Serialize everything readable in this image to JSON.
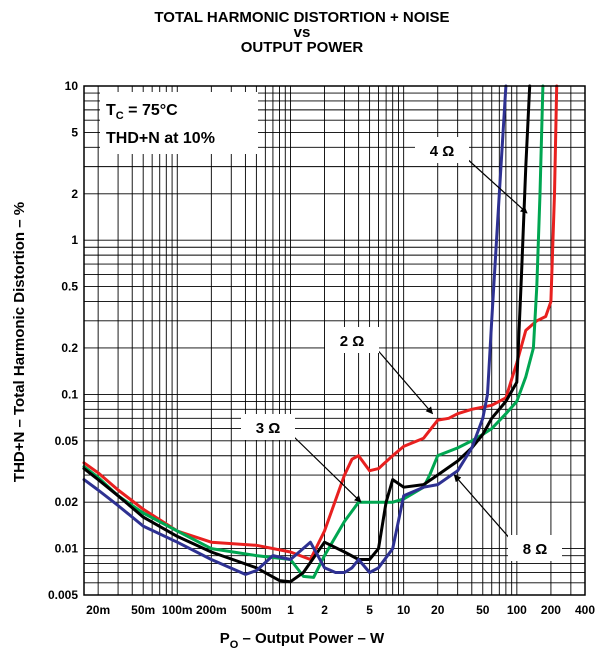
{
  "chart_data": {
    "type": "line",
    "title": [
      "TOTAL HARMONIC DISTORTION + NOISE",
      "vs",
      "OUTPUT POWER"
    ],
    "xlabel": {
      "main": "P",
      "sub": "O",
      "rest": " – Output Power – W"
    },
    "ylabel": "THD+N – Total Harmonic Distortion – %",
    "x_scale": "log",
    "y_scale": "log",
    "xlim": [
      0.015,
      400
    ],
    "ylim": [
      0.005,
      10
    ],
    "grid": true,
    "x_ticks": [
      {
        "v": 0.02,
        "label": "20m"
      },
      {
        "v": 0.05,
        "label": "50m"
      },
      {
        "v": 0.1,
        "label": "100m"
      },
      {
        "v": 0.2,
        "label": "200m"
      },
      {
        "v": 0.5,
        "label": "500m"
      },
      {
        "v": 1,
        "label": "1"
      },
      {
        "v": 2,
        "label": "2"
      },
      {
        "v": 5,
        "label": "5"
      },
      {
        "v": 10,
        "label": "10"
      },
      {
        "v": 20,
        "label": "20"
      },
      {
        "v": 50,
        "label": "50"
      },
      {
        "v": 100,
        "label": "100"
      },
      {
        "v": 200,
        "label": "200"
      },
      {
        "v": 400,
        "label": "400"
      }
    ],
    "y_ticks": [
      {
        "v": 0.005,
        "label": "0.005"
      },
      {
        "v": 0.01,
        "label": "0.01"
      },
      {
        "v": 0.02,
        "label": "0.02"
      },
      {
        "v": 0.05,
        "label": "0.05"
      },
      {
        "v": 0.1,
        "label": "0.1"
      },
      {
        "v": 0.2,
        "label": "0.2"
      },
      {
        "v": 0.5,
        "label": "0.5"
      },
      {
        "v": 1,
        "label": "1"
      },
      {
        "v": 2,
        "label": "2"
      },
      {
        "v": 5,
        "label": "5"
      },
      {
        "v": 10,
        "label": "10"
      }
    ],
    "conditions": {
      "tc_main": "T",
      "tc_sub": "C",
      "tc_rest": " = 75°C",
      "thd": "THD+N at 10%"
    },
    "series": [
      {
        "name": "2 Ω",
        "color": "#e8201f",
        "points": [
          [
            0.015,
            0.036
          ],
          [
            0.02,
            0.031
          ],
          [
            0.03,
            0.024
          ],
          [
            0.05,
            0.018
          ],
          [
            0.1,
            0.013
          ],
          [
            0.2,
            0.011
          ],
          [
            0.5,
            0.0105
          ],
          [
            1,
            0.0095
          ],
          [
            1.5,
            0.0085
          ],
          [
            2,
            0.013
          ],
          [
            3,
            0.03
          ],
          [
            3.5,
            0.038
          ],
          [
            4,
            0.04
          ],
          [
            5,
            0.032
          ],
          [
            6,
            0.033
          ],
          [
            8,
            0.04
          ],
          [
            10,
            0.046
          ],
          [
            15,
            0.052
          ],
          [
            20,
            0.068
          ],
          [
            25,
            0.07
          ],
          [
            30,
            0.075
          ],
          [
            40,
            0.08
          ],
          [
            60,
            0.085
          ],
          [
            80,
            0.095
          ],
          [
            100,
            0.16
          ],
          [
            120,
            0.26
          ],
          [
            150,
            0.3
          ],
          [
            180,
            0.32
          ],
          [
            200,
            0.4
          ],
          [
            215,
            2
          ],
          [
            225,
            10
          ]
        ]
      },
      {
        "name": "3 Ω",
        "color": "#00a651",
        "points": [
          [
            0.015,
            0.034
          ],
          [
            0.02,
            0.029
          ],
          [
            0.03,
            0.022
          ],
          [
            0.05,
            0.017
          ],
          [
            0.1,
            0.013
          ],
          [
            0.2,
            0.01
          ],
          [
            0.5,
            0.009
          ],
          [
            1,
            0.0085
          ],
          [
            1.3,
            0.0066
          ],
          [
            1.6,
            0.0065
          ],
          [
            2,
            0.009
          ],
          [
            3,
            0.015
          ],
          [
            4,
            0.02
          ],
          [
            6,
            0.02
          ],
          [
            8,
            0.02
          ],
          [
            10,
            0.021
          ],
          [
            15,
            0.025
          ],
          [
            17,
            0.03
          ],
          [
            20,
            0.04
          ],
          [
            30,
            0.045
          ],
          [
            40,
            0.05
          ],
          [
            50,
            0.055
          ],
          [
            60,
            0.06
          ],
          [
            80,
            0.075
          ],
          [
            100,
            0.09
          ],
          [
            120,
            0.13
          ],
          [
            140,
            0.2
          ],
          [
            150,
            0.5
          ],
          [
            160,
            2
          ],
          [
            170,
            10
          ]
        ]
      },
      {
        "name": "4 Ω",
        "color": "#000000",
        "points": [
          [
            0.015,
            0.033
          ],
          [
            0.02,
            0.028
          ],
          [
            0.03,
            0.022
          ],
          [
            0.05,
            0.016
          ],
          [
            0.1,
            0.012
          ],
          [
            0.2,
            0.0095
          ],
          [
            0.5,
            0.0075
          ],
          [
            0.8,
            0.0062
          ],
          [
            1,
            0.0061
          ],
          [
            1.3,
            0.007
          ],
          [
            2,
            0.011
          ],
          [
            3,
            0.0095
          ],
          [
            4,
            0.0085
          ],
          [
            5,
            0.0085
          ],
          [
            6,
            0.01
          ],
          [
            7,
            0.02
          ],
          [
            8,
            0.028
          ],
          [
            10,
            0.025
          ],
          [
            15,
            0.026
          ],
          [
            20,
            0.03
          ],
          [
            30,
            0.037
          ],
          [
            40,
            0.045
          ],
          [
            50,
            0.055
          ],
          [
            60,
            0.07
          ],
          [
            80,
            0.09
          ],
          [
            100,
            0.12
          ],
          [
            110,
            0.6
          ],
          [
            120,
            3
          ],
          [
            130,
            10
          ]
        ]
      },
      {
        "name": "8 Ω",
        "color": "#2e3192",
        "points": [
          [
            0.015,
            0.028
          ],
          [
            0.02,
            0.024
          ],
          [
            0.03,
            0.019
          ],
          [
            0.05,
            0.014
          ],
          [
            0.1,
            0.011
          ],
          [
            0.2,
            0.0085
          ],
          [
            0.4,
            0.0068
          ],
          [
            0.5,
            0.0072
          ],
          [
            0.7,
            0.009
          ],
          [
            1,
            0.0085
          ],
          [
            1.5,
            0.011
          ],
          [
            2,
            0.0075
          ],
          [
            2.5,
            0.007
          ],
          [
            3,
            0.007
          ],
          [
            3.5,
            0.0075
          ],
          [
            4,
            0.0085
          ],
          [
            5,
            0.007
          ],
          [
            6,
            0.0075
          ],
          [
            8,
            0.01
          ],
          [
            10,
            0.022
          ],
          [
            15,
            0.025
          ],
          [
            20,
            0.026
          ],
          [
            30,
            0.032
          ],
          [
            40,
            0.045
          ],
          [
            50,
            0.07
          ],
          [
            55,
            0.1
          ],
          [
            60,
            0.3
          ],
          [
            70,
            2
          ],
          [
            80,
            10
          ]
        ]
      }
    ],
    "annotations": [
      {
        "text": "4 Ω",
        "series": "4 Ω",
        "at": [
          123,
          1.5
        ]
      },
      {
        "text": "2 Ω",
        "series": "2 Ω",
        "at": [
          18,
          0.075
        ]
      },
      {
        "text": "3 Ω",
        "series": "3 Ω",
        "at": [
          4.2,
          0.02
        ]
      },
      {
        "text": "8 Ω",
        "series": "8 Ω",
        "at": [
          28,
          0.03
        ]
      }
    ]
  }
}
